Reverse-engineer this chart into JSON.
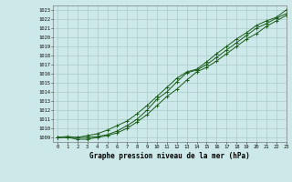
{
  "title": "Graphe pression niveau de la mer (hPa)",
  "bg_color": "#cce8e8",
  "grid_color": "#aacccc",
  "line_color": "#1a5c1a",
  "xlim": [
    -0.5,
    23
  ],
  "ylim": [
    1008.5,
    1023.5
  ],
  "xticks": [
    0,
    1,
    2,
    3,
    4,
    5,
    6,
    7,
    8,
    9,
    10,
    11,
    12,
    13,
    14,
    15,
    16,
    17,
    18,
    19,
    20,
    21,
    22,
    23
  ],
  "yticks": [
    1009,
    1010,
    1011,
    1012,
    1013,
    1014,
    1015,
    1016,
    1017,
    1018,
    1019,
    1020,
    1021,
    1022,
    1023
  ],
  "series": [
    [
      1009.0,
      1009.0,
      1009.0,
      1009.0,
      1009.1,
      1009.3,
      1009.7,
      1010.3,
      1011.0,
      1012.0,
      1013.2,
      1014.0,
      1015.1,
      1016.1,
      1016.4,
      1017.0,
      1017.8,
      1018.6,
      1019.4,
      1020.2,
      1021.0,
      1021.5,
      1022.1,
      1022.6
    ],
    [
      1009.0,
      1009.0,
      1008.8,
      1008.8,
      1009.0,
      1009.2,
      1009.5,
      1010.0,
      1010.7,
      1011.5,
      1012.5,
      1013.5,
      1014.3,
      1015.3,
      1016.2,
      1016.7,
      1017.4,
      1018.2,
      1019.0,
      1019.8,
      1020.4,
      1021.2,
      1021.8,
      1022.4
    ],
    [
      1009.0,
      1009.1,
      1009.0,
      1009.2,
      1009.4,
      1009.8,
      1010.3,
      1010.8,
      1011.6,
      1012.5,
      1013.5,
      1014.5,
      1015.5,
      1016.2,
      1016.5,
      1017.3,
      1018.2,
      1019.0,
      1019.8,
      1020.5,
      1021.3,
      1021.8,
      1022.2,
      1023.0
    ]
  ]
}
